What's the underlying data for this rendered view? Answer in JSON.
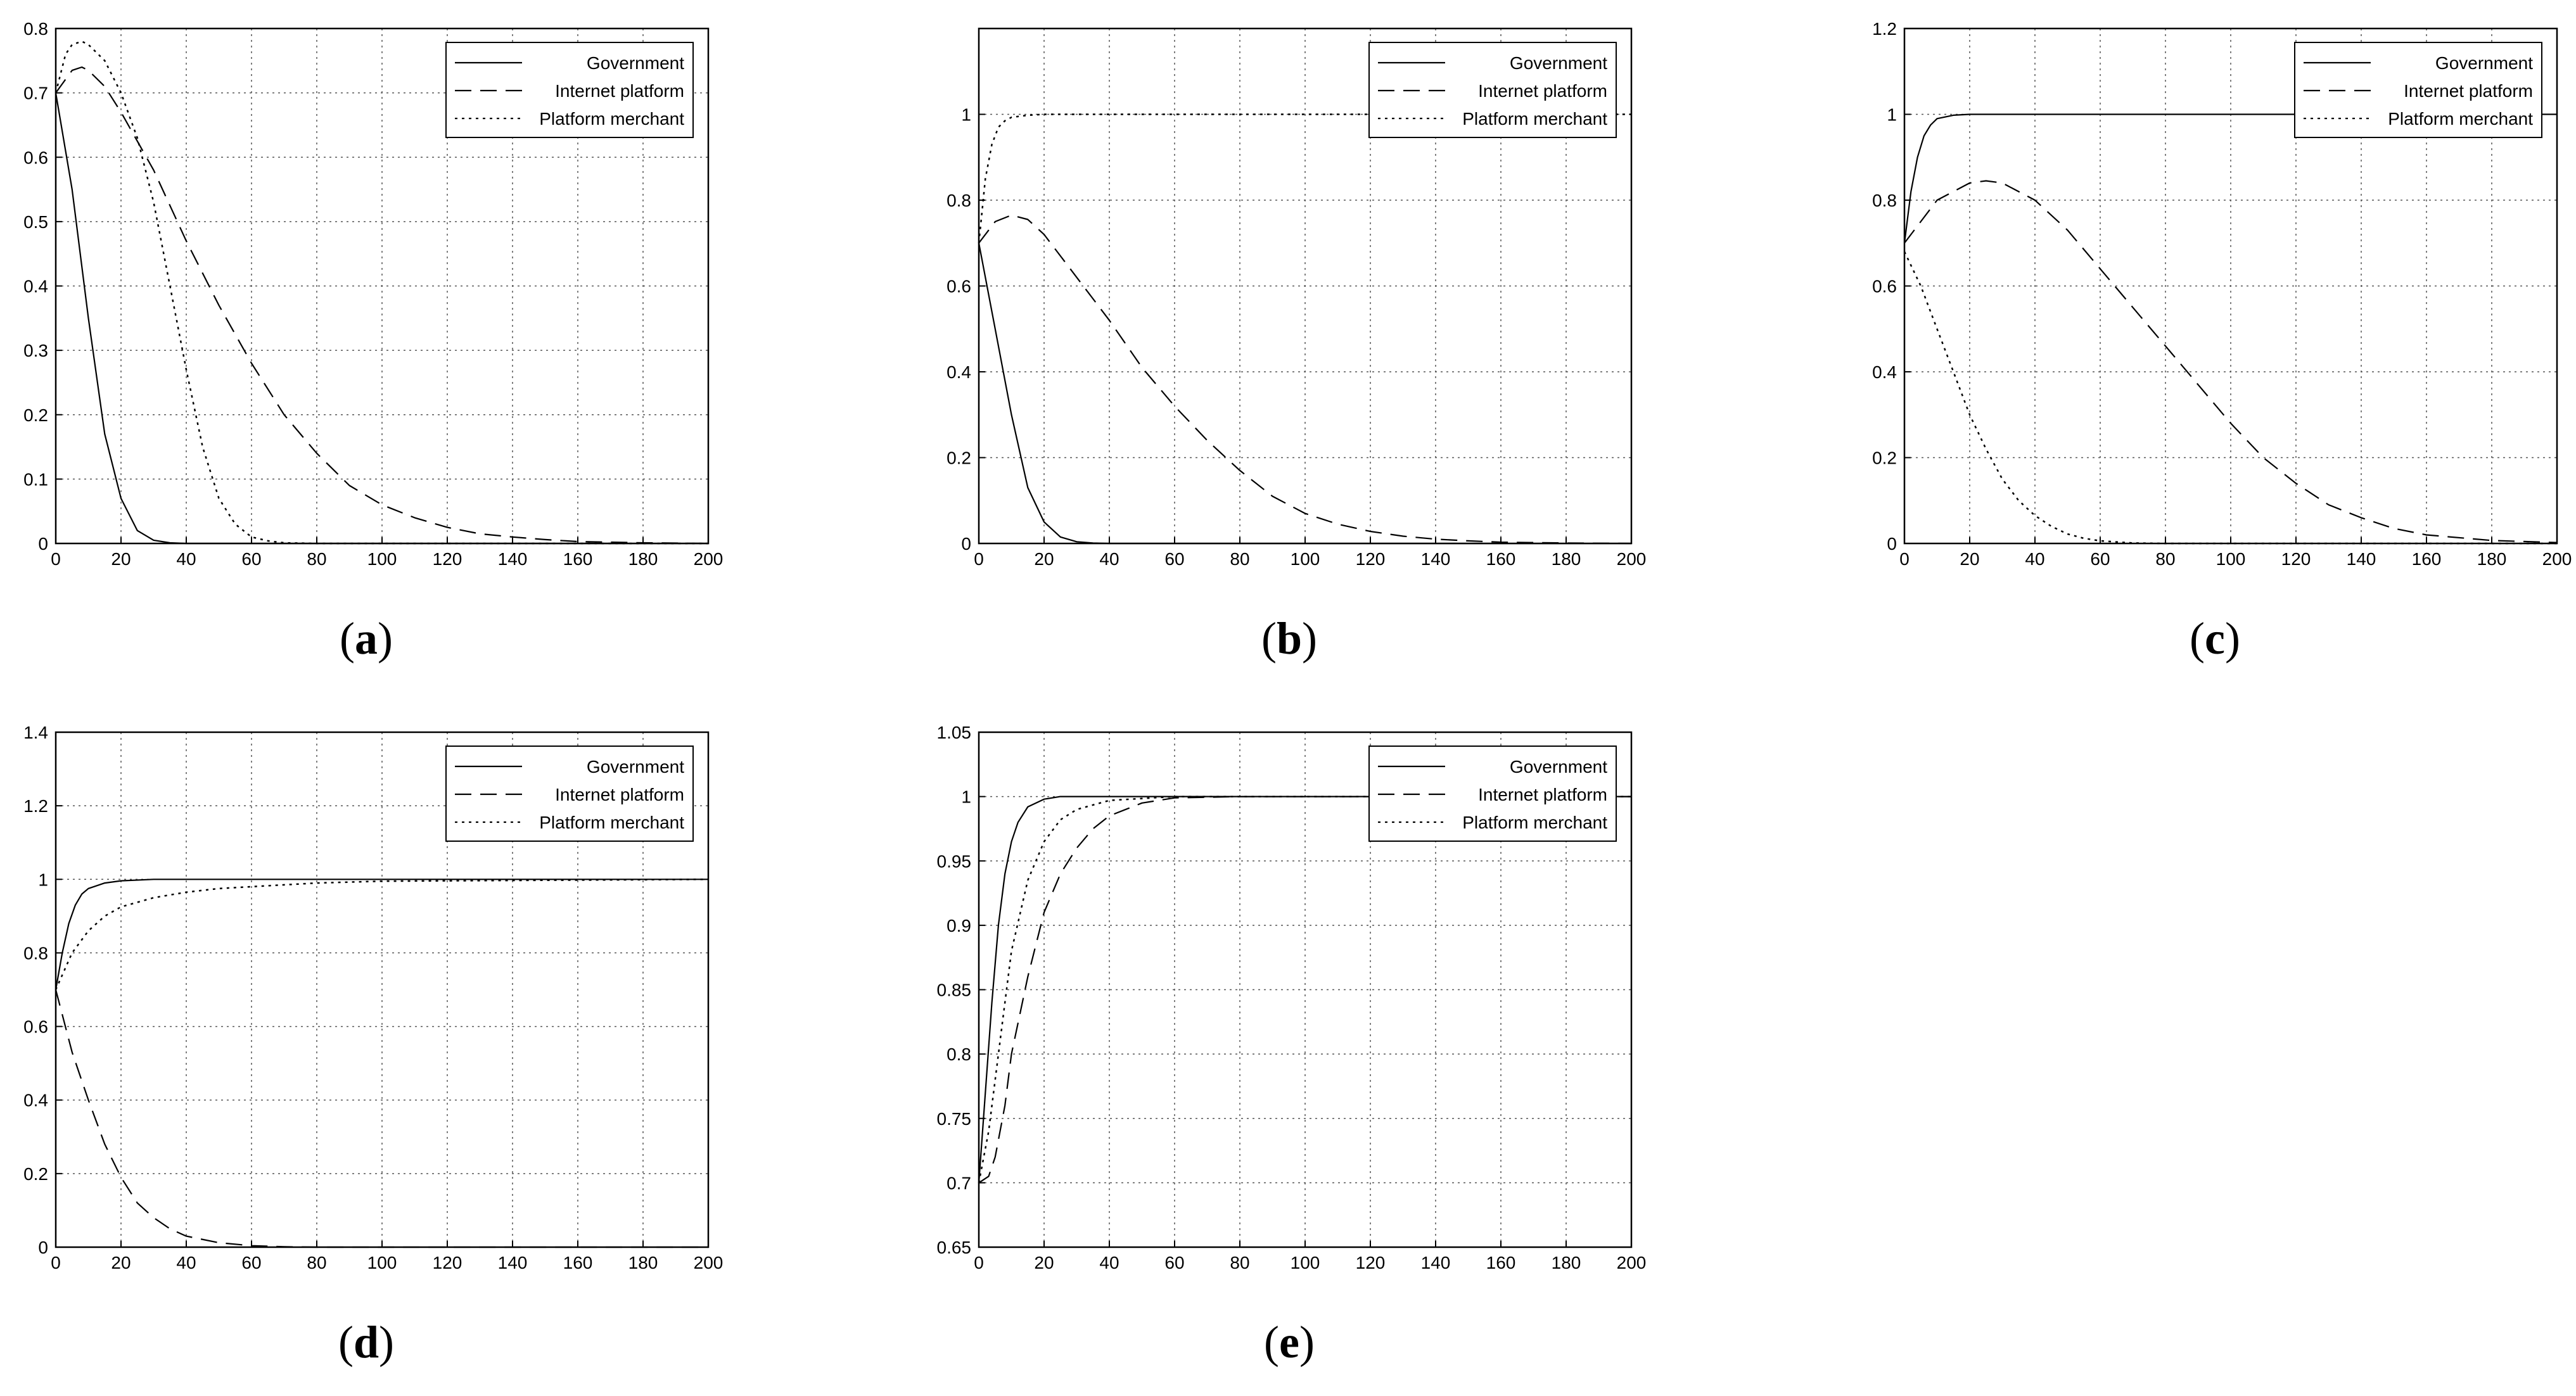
{
  "legend_labels": [
    "Government",
    "Internet platform",
    "Platform merchant"
  ],
  "chart_data": [
    {
      "type": "line",
      "caption": "a",
      "xlim": [
        0,
        200
      ],
      "ylim": [
        0,
        0.8
      ],
      "x_ticks": [
        "0",
        "20",
        "40",
        "60",
        "80",
        "100",
        "120",
        "140",
        "160",
        "180",
        "200"
      ],
      "y_ticks": [
        "0",
        "0.1",
        "0.2",
        "0.3",
        "0.4",
        "0.5",
        "0.6",
        "0.7",
        "0.8"
      ],
      "grid": true,
      "legend_position": "top-right",
      "series": [
        {
          "name": "Government",
          "style": "solid",
          "x": [
            0,
            5,
            10,
            15,
            20,
            25,
            30,
            35,
            40,
            60,
            100,
            200
          ],
          "y": [
            0.7,
            0.55,
            0.35,
            0.17,
            0.07,
            0.02,
            0.005,
            0.001,
            0,
            0,
            0,
            0
          ]
        },
        {
          "name": "Internet platform",
          "style": "dashed",
          "x": [
            0,
            5,
            8,
            10,
            15,
            20,
            30,
            40,
            50,
            60,
            70,
            80,
            90,
            100,
            110,
            120,
            130,
            140,
            150,
            160,
            180,
            200
          ],
          "y": [
            0.7,
            0.735,
            0.74,
            0.735,
            0.71,
            0.67,
            0.58,
            0.47,
            0.37,
            0.28,
            0.2,
            0.14,
            0.09,
            0.06,
            0.04,
            0.025,
            0.015,
            0.01,
            0.006,
            0.003,
            0.001,
            0
          ]
        },
        {
          "name": "Platform merchant",
          "style": "dotted",
          "x": [
            0,
            3,
            5,
            8,
            10,
            15,
            20,
            25,
            30,
            35,
            40,
            45,
            50,
            55,
            60,
            65,
            70,
            80,
            200
          ],
          "y": [
            0.7,
            0.76,
            0.775,
            0.78,
            0.775,
            0.75,
            0.7,
            0.63,
            0.53,
            0.4,
            0.27,
            0.15,
            0.07,
            0.03,
            0.01,
            0.004,
            0.001,
            0,
            0
          ]
        }
      ]
    },
    {
      "type": "line",
      "caption": "b",
      "xlim": [
        0,
        200
      ],
      "ylim": [
        0,
        1.2
      ],
      "x_ticks": [
        "0",
        "20",
        "40",
        "60",
        "80",
        "100",
        "120",
        "140",
        "160",
        "180",
        "200"
      ],
      "y_ticks": [
        "0",
        "0.2",
        "0.4",
        "0.6",
        "0.8",
        "1"
      ],
      "grid": true,
      "legend_position": "top-right",
      "series": [
        {
          "name": "Government",
          "style": "solid",
          "x": [
            0,
            5,
            10,
            15,
            20,
            25,
            30,
            35,
            40,
            60,
            200
          ],
          "y": [
            0.7,
            0.5,
            0.3,
            0.13,
            0.05,
            0.015,
            0.004,
            0.001,
            0,
            0,
            0
          ]
        },
        {
          "name": "Internet platform",
          "style": "dashed",
          "x": [
            0,
            5,
            10,
            15,
            20,
            30,
            40,
            50,
            60,
            70,
            80,
            90,
            100,
            110,
            120,
            130,
            140,
            150,
            160,
            180,
            200
          ],
          "y": [
            0.7,
            0.75,
            0.765,
            0.755,
            0.72,
            0.62,
            0.52,
            0.41,
            0.32,
            0.24,
            0.17,
            0.11,
            0.07,
            0.045,
            0.028,
            0.017,
            0.01,
            0.006,
            0.003,
            0.001,
            0
          ]
        },
        {
          "name": "Platform merchant",
          "style": "dotted",
          "x": [
            0,
            2,
            4,
            6,
            8,
            10,
            15,
            20,
            200
          ],
          "y": [
            0.7,
            0.85,
            0.93,
            0.97,
            0.985,
            0.993,
            0.998,
            1,
            1
          ]
        }
      ]
    },
    {
      "type": "line",
      "caption": "c",
      "xlim": [
        0,
        200
      ],
      "ylim": [
        0,
        1.2
      ],
      "x_ticks": [
        "0",
        "20",
        "40",
        "60",
        "80",
        "100",
        "120",
        "140",
        "160",
        "180",
        "200"
      ],
      "y_ticks": [
        "0",
        "0.2",
        "0.4",
        "0.6",
        "0.8",
        "1",
        "1.2"
      ],
      "grid": true,
      "legend_position": "top-right",
      "series": [
        {
          "name": "Government",
          "style": "solid",
          "x": [
            0,
            2,
            4,
            6,
            8,
            10,
            15,
            20,
            30,
            200
          ],
          "y": [
            0.7,
            0.82,
            0.9,
            0.95,
            0.975,
            0.99,
            0.998,
            1,
            1,
            1
          ]
        },
        {
          "name": "Internet platform",
          "style": "dashed",
          "x": [
            0,
            10,
            20,
            25,
            30,
            40,
            50,
            60,
            70,
            80,
            90,
            100,
            110,
            120,
            130,
            140,
            150,
            160,
            180,
            200
          ],
          "y": [
            0.7,
            0.8,
            0.84,
            0.845,
            0.84,
            0.8,
            0.73,
            0.64,
            0.55,
            0.46,
            0.37,
            0.28,
            0.2,
            0.14,
            0.09,
            0.06,
            0.035,
            0.02,
            0.007,
            0.002
          ]
        },
        {
          "name": "Platform merchant",
          "style": "dotted",
          "x": [
            0,
            5,
            10,
            15,
            20,
            25,
            30,
            35,
            40,
            45,
            50,
            55,
            60,
            70,
            80,
            200
          ],
          "y": [
            0.68,
            0.6,
            0.5,
            0.4,
            0.3,
            0.22,
            0.15,
            0.1,
            0.065,
            0.04,
            0.022,
            0.012,
            0.006,
            0.001,
            0,
            0
          ]
        }
      ]
    },
    {
      "type": "line",
      "caption": "d",
      "xlim": [
        0,
        200
      ],
      "ylim": [
        0,
        1.4
      ],
      "x_ticks": [
        "0",
        "20",
        "40",
        "60",
        "80",
        "100",
        "120",
        "140",
        "160",
        "180",
        "200"
      ],
      "y_ticks": [
        "0",
        "0.2",
        "0.4",
        "0.6",
        "0.8",
        "1",
        "1.2",
        "1.4"
      ],
      "grid": true,
      "legend_position": "top-right",
      "series": [
        {
          "name": "Government",
          "style": "solid",
          "x": [
            0,
            2,
            4,
            6,
            8,
            10,
            15,
            20,
            30,
            200
          ],
          "y": [
            0.7,
            0.8,
            0.88,
            0.93,
            0.96,
            0.975,
            0.99,
            0.996,
            1,
            1
          ]
        },
        {
          "name": "Internet platform",
          "style": "dashed",
          "x": [
            0,
            5,
            10,
            15,
            20,
            25,
            30,
            35,
            40,
            50,
            60,
            70,
            80,
            200
          ],
          "y": [
            0.7,
            0.53,
            0.4,
            0.28,
            0.19,
            0.12,
            0.08,
            0.05,
            0.03,
            0.012,
            0.004,
            0.001,
            0,
            0
          ]
        },
        {
          "name": "Platform merchant",
          "style": "dotted",
          "x": [
            0,
            5,
            10,
            15,
            20,
            30,
            40,
            50,
            60,
            80,
            100,
            200
          ],
          "y": [
            0.7,
            0.8,
            0.86,
            0.9,
            0.925,
            0.95,
            0.965,
            0.975,
            0.98,
            0.99,
            0.995,
            1
          ]
        }
      ]
    },
    {
      "type": "line",
      "caption": "e",
      "xlim": [
        0,
        200
      ],
      "ylim": [
        0.65,
        1.05
      ],
      "x_ticks": [
        "0",
        "20",
        "40",
        "60",
        "80",
        "100",
        "120",
        "140",
        "160",
        "180",
        "200"
      ],
      "y_ticks": [
        "0.65",
        "0.7",
        "0.75",
        "0.8",
        "0.85",
        "0.9",
        "0.95",
        "1",
        "1.05"
      ],
      "grid": true,
      "legend_position": "top-right",
      "series": [
        {
          "name": "Government",
          "style": "solid",
          "x": [
            0,
            2,
            4,
            6,
            8,
            10,
            12,
            15,
            20,
            25,
            30,
            200
          ],
          "y": [
            0.7,
            0.77,
            0.84,
            0.9,
            0.94,
            0.965,
            0.98,
            0.992,
            0.998,
            1,
            1,
            1
          ]
        },
        {
          "name": "Internet platform",
          "style": "dashed",
          "x": [
            0,
            3,
            5,
            8,
            10,
            15,
            20,
            25,
            30,
            35,
            40,
            50,
            60,
            80,
            200
          ],
          "y": [
            0.7,
            0.705,
            0.72,
            0.76,
            0.8,
            0.86,
            0.91,
            0.94,
            0.96,
            0.975,
            0.985,
            0.995,
            0.999,
            1,
            1
          ]
        },
        {
          "name": "Platform merchant",
          "style": "dotted",
          "x": [
            0,
            3,
            5,
            8,
            10,
            15,
            20,
            25,
            30,
            40,
            60,
            200
          ],
          "y": [
            0.7,
            0.74,
            0.78,
            0.84,
            0.88,
            0.935,
            0.965,
            0.982,
            0.99,
            0.997,
            1,
            1
          ]
        }
      ]
    }
  ]
}
